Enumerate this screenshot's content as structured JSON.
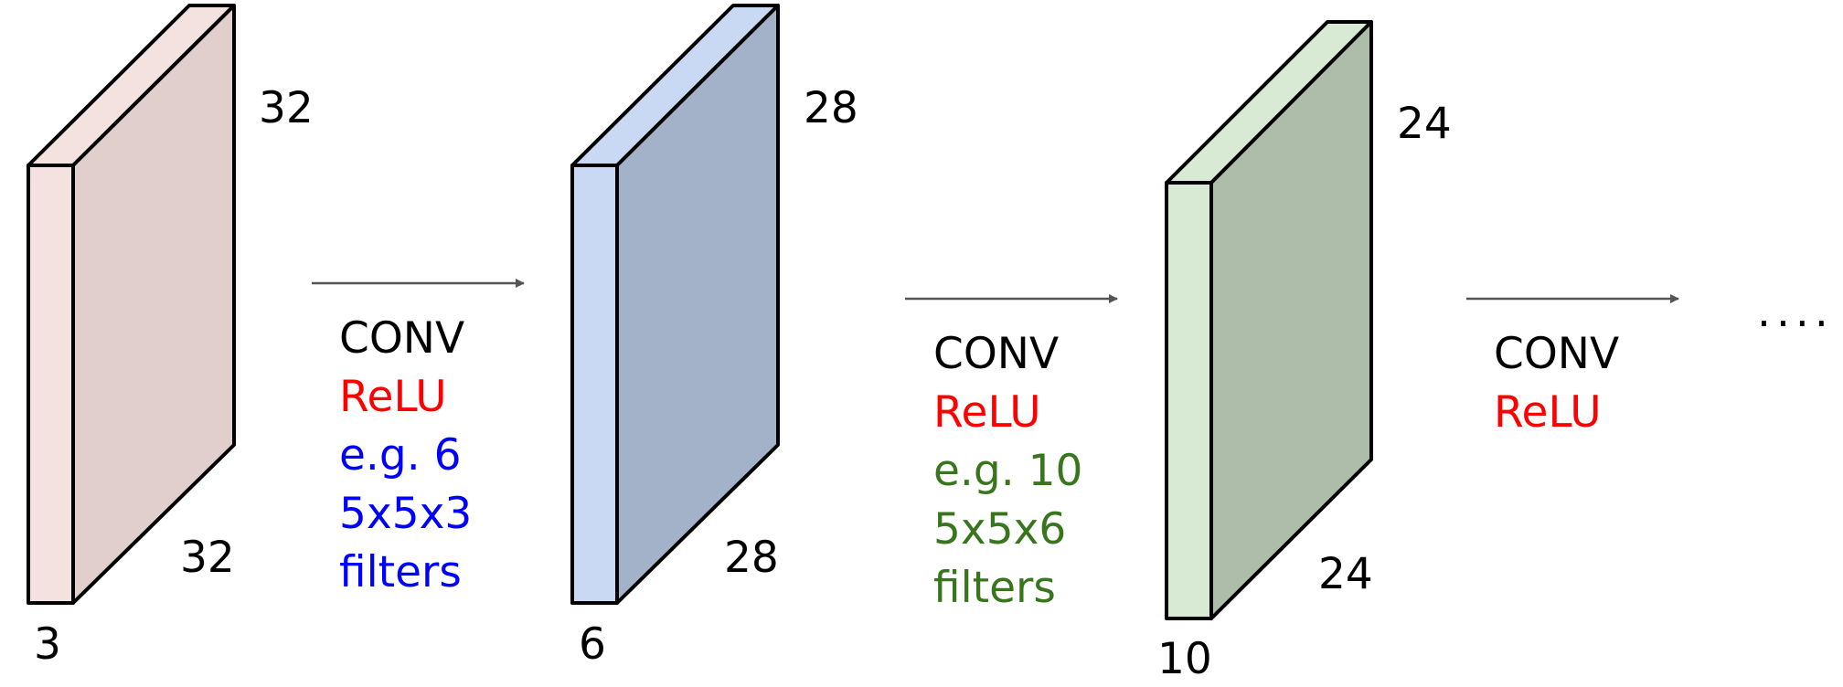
{
  "colors": {
    "block1_front": "#F4E2E0",
    "block1_side": "#E0CFCD",
    "block1_top": "#F4E2E0",
    "block2_front": "#C9D9F3",
    "block2_side": "#A3B1C9",
    "block2_top": "#C9D9F3",
    "block3_front": "#D9EAD4",
    "block3_side": "#AEBDAA",
    "block3_top": "#D9EAD4",
    "arrow": "#555555",
    "conv_text": "#000000",
    "relu_text": "#FF0000",
    "filters1_text": "#0000FF",
    "filters2_text": "#38761D"
  },
  "volumes": [
    {
      "height": "32",
      "width": "32",
      "depth": "3"
    },
    {
      "height": "28",
      "width": "28",
      "depth": "6"
    },
    {
      "height": "24",
      "width": "24",
      "depth": "10"
    }
  ],
  "ops": [
    {
      "conv": "CONV",
      "relu": "ReLU",
      "line1": "e.g. 6",
      "line2": "5x5x3",
      "line3": "filters"
    },
    {
      "conv": "CONV",
      "relu": "ReLU",
      "line1": "e.g. 10",
      "line2": "5x5x6",
      "line3": "filters"
    },
    {
      "conv": "CONV",
      "relu": "ReLU"
    }
  ],
  "ellipsis": "...."
}
